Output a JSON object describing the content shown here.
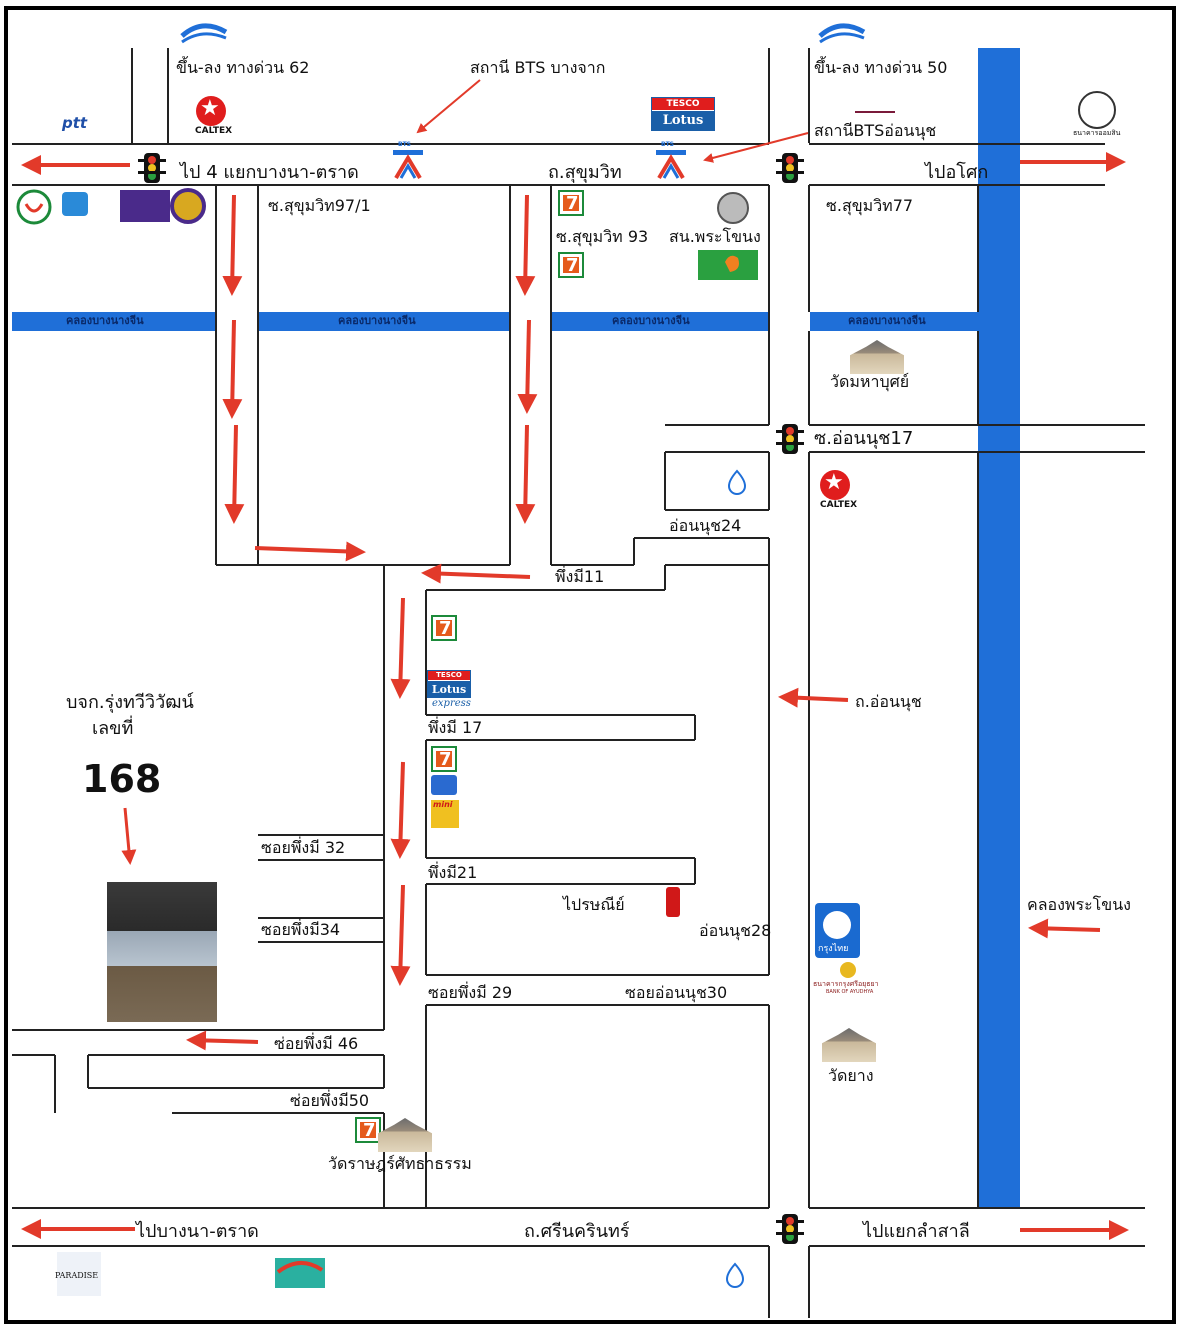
{
  "labels": {
    "expressway_62": "ขึ้น-ลง ทางด่วน 62",
    "bts_bangchak": "สถานี BTS บางจาก",
    "expressway_50": "ขึ้น-ลง ทางด่วน 50",
    "bts_onnut": "สถานีBTSอ่อนนุช",
    "to_bangna_trat_4": "ไป 4 แยกบางนา-ตราด",
    "sukhumvit_road": "ถ.สุขุมวิท",
    "to_asoke": "ไปอโศก",
    "soi_sukhumvit_97_1": "ซ.สุขุมวิท97/1",
    "soi_sukhumvit_93": "ซ.สุขุมวิท 93",
    "phra_khanong_police": "สน.พระโขนง",
    "soi_sukhumvit_77": "ซ.สุขุมวิท77",
    "canal_bang_nang_chin": "คลองบางนางจีน",
    "wat_mahabut": "วัดมหาบุศย์",
    "soi_onnut_17": "ซ.อ่อนนุช17",
    "onnut_24": "อ่อนนุช24",
    "phueng_mi_11": "พึ่งมี11",
    "company_name": "บจก.รุ่งทวีวิวัฒน์",
    "number_label": "เลขที่",
    "house_number": "168",
    "onnut_road": "ถ.อ่อนนุช",
    "phueng_mi_17": "พึ่งมี 17",
    "soi_phueng_mi_32": "ซอยพึ่งมี 32",
    "phueng_mi_21": "พึ่งมี21",
    "post_office": "ไปรษณีย์",
    "soi_phueng_mi_34": "ซอยพึ่งมี34",
    "onnut_28": "อ่อนนุช28",
    "phra_khanong_canal": "คลองพระโขนง",
    "soi_phueng_mi_29": "ซอยพึ่งมี 29",
    "soi_onnut_30": "ซอยอ่อนนุช30",
    "soi_phueng_mi_46": "ซ่อยพึ่งมี 46",
    "wat_yang": "วัดยาง",
    "soi_phueng_mi_50": "ซ่อยพึ่งมี50",
    "wat_rat_sattha": "วัดราษฎร์ศัทธาธรรม",
    "to_bangna_trat": "ไปบางนา-ตราด",
    "srinakarin_road": "ถ.ศรีนครินทร์",
    "to_lam_salee": "ไปแยกลำสาลี"
  },
  "logos": {
    "ptt": "ptt",
    "caltex": "CALTEX",
    "tesco_top": "TESCO",
    "tesco_bottom": "Lotus",
    "tesco_express": "express",
    "bts_sign": "BTS",
    "krungthai": "กรุงไทย",
    "krungsri": "ธนาคารกรุงศรีอยุธยา",
    "krungsri_en": "BANK OF AYUDHYA",
    "gsb": "ธนาคารออมสิน",
    "mini": "mini",
    "paradise": "PARADISE"
  },
  "colors": {
    "canal_blue": "#1f6fd8",
    "arrow_red": "#e23a2a",
    "road_line": "#222222",
    "frame": "#000000"
  }
}
